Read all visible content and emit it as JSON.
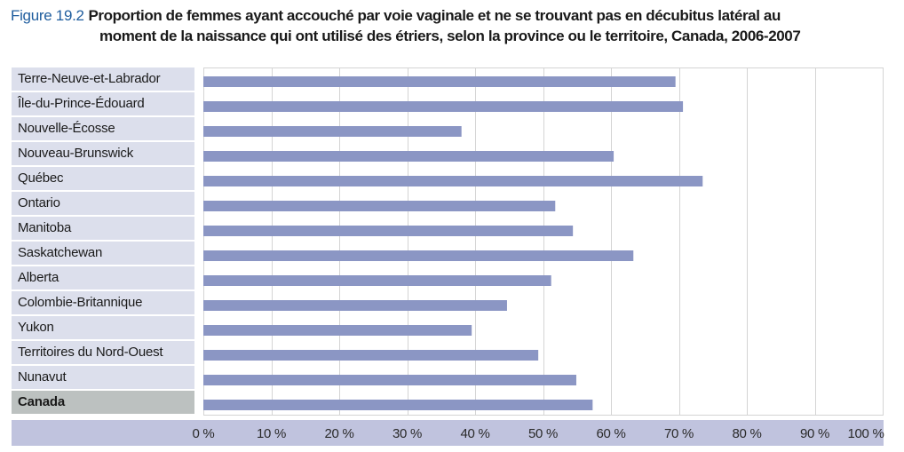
{
  "title": {
    "figure_label": "Figure 19.2",
    "line1": "Proportion de femmes ayant accouché par voie vaginale et ne se trouvant pas en décubitus latéral au",
    "line2": "moment de la naissance qui ont utilisé des étriers, selon la province ou le territoire, Canada, 2006-2007"
  },
  "colors": {
    "bar": "#8b96c4",
    "label_bg": "#dcdfec",
    "total_bg": "#bcc1c0",
    "axis_bg": "#c0c3de",
    "grid": "#d4d4d4",
    "figure_label": "#1f5d9e"
  },
  "chart_data": {
    "type": "bar",
    "orientation": "horizontal",
    "title": "Proportion de femmes ayant accouché par voie vaginale et ne se trouvant pas en décubitus latéral au moment de la naissance qui ont utilisé des étriers, selon la province ou le territoire, Canada, 2006-2007",
    "categories": [
      "Terre-Neuve-et-Labrador",
      "Île-du-Prince-Édouard",
      "Nouvelle-Écosse",
      "Nouveau-Brunswick",
      "Québec",
      "Ontario",
      "Manitoba",
      "Saskatchewan",
      "Alberta",
      "Colombie-Britannique",
      "Yukon",
      "Territoires du Nord-Ouest",
      "Nunavut",
      "Canada"
    ],
    "values": [
      69.5,
      70.6,
      38.0,
      60.4,
      73.5,
      51.8,
      54.4,
      63.3,
      51.2,
      44.7,
      39.5,
      49.3,
      54.9,
      57.3
    ],
    "xlim": [
      0,
      100
    ],
    "xticks": [
      "0 %",
      "10 %",
      "20 %",
      "30 %",
      "40 %",
      "50 %",
      "60 %",
      "70 %",
      "80 %",
      "90 %",
      "100 %"
    ],
    "xlabel": "",
    "ylabel": "",
    "grid": true,
    "highlight_category": "Canada"
  }
}
